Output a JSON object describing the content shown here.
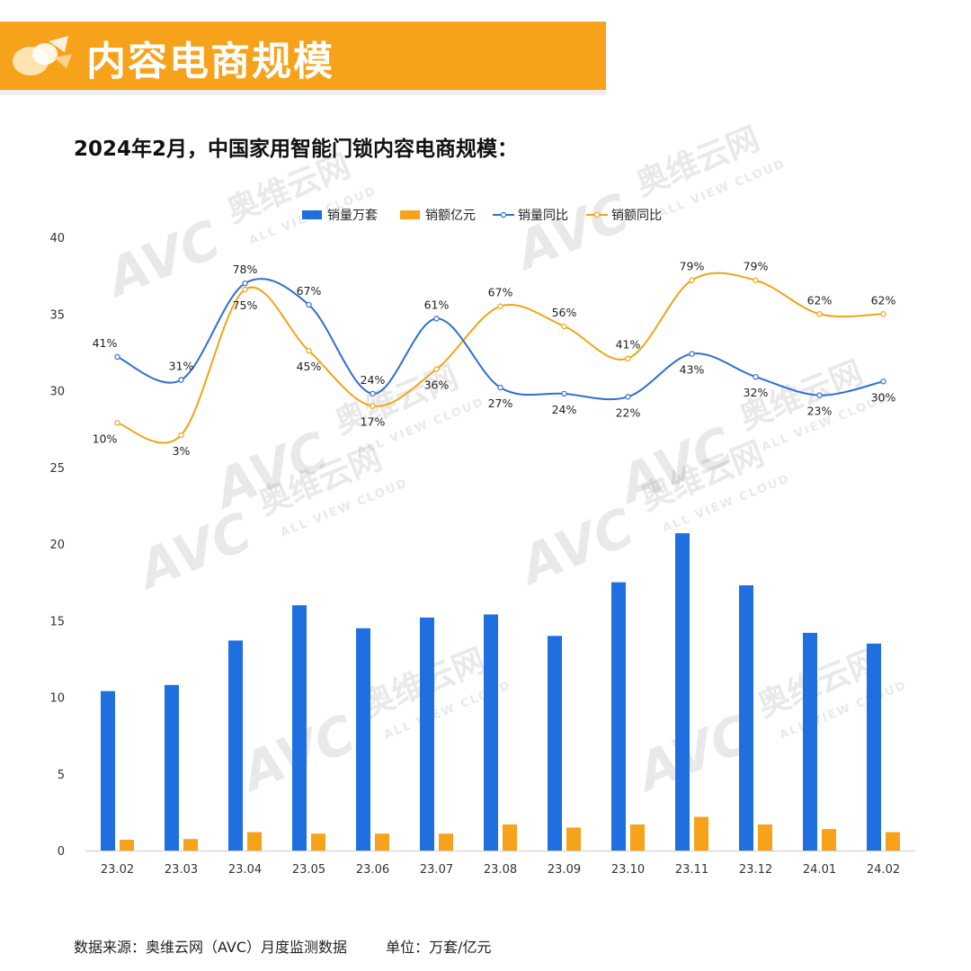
{
  "banner": {
    "title": "内容电商规模"
  },
  "subtitle": "2024年2月，中国家用智能门锁内容电商规模：",
  "footer": {
    "source": "数据来源：奥维云网（AVC）月度监测数据",
    "unit": "单位：万套/亿元"
  },
  "watermark": {
    "logo": "AVC",
    "name": "奥维云网",
    "tagline": "ALL VIEW CLOUD"
  },
  "colors": {
    "banner": "#f7a21b",
    "volume": "#1f6fe0",
    "sales": "#f7a21b",
    "volume_yoy": "#2e6fd6",
    "sales_yoy": "#f2a417"
  },
  "chart_data": {
    "type": "bar",
    "title": "",
    "xlabel": "",
    "ylabel": "",
    "ylim": [
      0,
      40
    ],
    "yticks": [
      0,
      5,
      10,
      15,
      20,
      25,
      30,
      35,
      40
    ],
    "legend_position": "top-center",
    "grid": false,
    "categories": [
      "23.02",
      "23.03",
      "23.04",
      "23.05",
      "23.06",
      "23.07",
      "23.08",
      "23.09",
      "23.10",
      "23.11",
      "23.12",
      "24.01",
      "24.02"
    ],
    "series": [
      {
        "name": "销量万套",
        "kind": "bar",
        "values": [
          10.4,
          10.8,
          13.7,
          16.0,
          14.5,
          15.2,
          15.4,
          14.0,
          17.5,
          20.7,
          17.3,
          14.2,
          13.5
        ]
      },
      {
        "name": "销额亿元",
        "kind": "bar",
        "values": [
          0.7,
          0.75,
          1.2,
          1.1,
          1.1,
          1.1,
          1.7,
          1.5,
          1.7,
          2.2,
          1.7,
          1.4,
          1.2
        ]
      },
      {
        "name": "销量同比",
        "kind": "line",
        "labels": [
          "41%",
          "31%",
          "78%",
          "67%",
          "24%",
          "61%",
          "27%",
          "24%",
          "22%",
          "43%",
          "32%",
          "23%",
          "30%"
        ],
        "values": [
          32.2,
          30.7,
          37.0,
          35.6,
          29.8,
          34.7,
          30.2,
          29.8,
          29.6,
          32.4,
          30.9,
          29.7,
          30.6
        ]
      },
      {
        "name": "销额同比",
        "kind": "line",
        "labels": [
          "10%",
          "3%",
          "75%",
          "45%",
          "17%",
          "36%",
          "67%",
          "56%",
          "41%",
          "79%",
          "79%",
          "62%",
          "62%"
        ],
        "values": [
          27.9,
          27.1,
          36.6,
          32.6,
          29.0,
          31.4,
          35.5,
          34.2,
          32.1,
          37.2,
          37.2,
          35.0,
          35.0
        ]
      }
    ]
  }
}
